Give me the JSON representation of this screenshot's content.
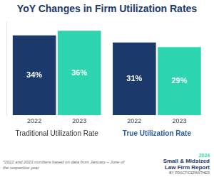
{
  "chart_data": {
    "type": "bar",
    "title": "YoY Changes in Firm Utilization Rates",
    "categories": [
      "Traditional Utilization Rate",
      "True Utilization Rate"
    ],
    "series": [
      {
        "name": "2022",
        "color": "#1b3a6b",
        "values": [
          34,
          31
        ],
        "value_labels": [
          "34%",
          "31%"
        ]
      },
      {
        "name": "2023",
        "color": "#2dd4b0",
        "values": [
          36,
          29
        ],
        "value_labels": [
          "36%",
          "29%"
        ]
      }
    ],
    "ylim": [
      0,
      40
    ],
    "grid": false,
    "tick_labels": "x",
    "data_labels": true,
    "footnote": "*2022 and 2023 numbers based on data from January – June of the respective year",
    "logo": [
      "2024",
      "Small & Midsized",
      "Law Firm Report",
      "BY PRACTICEPANTHER"
    ]
  }
}
